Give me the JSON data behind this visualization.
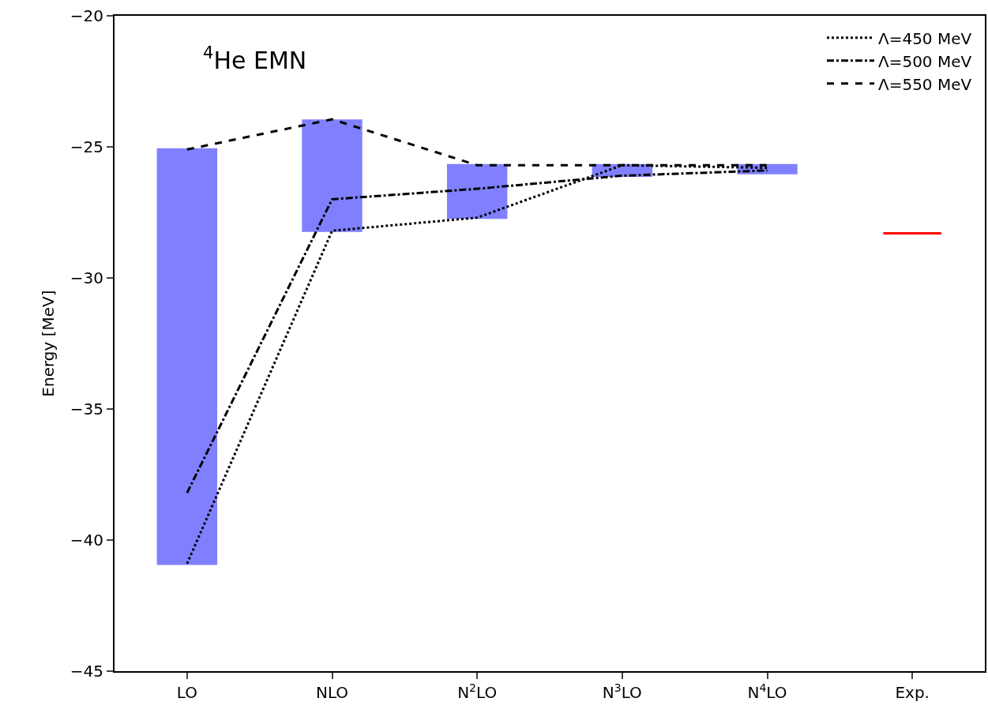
{
  "chart_data": {
    "type": "line",
    "annotations": [
      "$^{4}$He EMN"
    ],
    "ylabel": "Energy [MeV]",
    "categories": [
      "LO",
      "NLO",
      "N$^{2}$LO",
      "N$^{3}$LO",
      "N$^{4}$LO",
      "Exp."
    ],
    "ylim": [
      -45,
      -20
    ],
    "yticks": [
      -45,
      -40,
      -35,
      -30,
      -25,
      -20
    ],
    "legend": "top right",
    "series": [
      {
        "type": "bar",
        "color": "#8080ff",
        "base": [
          -40.9,
          -28.2,
          -27.7,
          -26.1,
          -26.0,
          null
        ],
        "values": [
          15.8,
          4.2,
          2.0,
          0.4,
          0.3,
          null
        ]
      },
      {
        "name": "Λ=450 MeV",
        "color": "#000000",
        "line_style": "dotted",
        "values": [
          -40.9,
          -28.2,
          -27.7,
          -25.7,
          -25.8,
          null
        ]
      },
      {
        "name": "Λ=500 MeV",
        "color": "#000000",
        "line_style": "dashdot",
        "values": [
          -38.2,
          -27.0,
          -26.6,
          -26.1,
          -25.9,
          null
        ]
      },
      {
        "name": "Λ=550 MeV",
        "color": "#000000",
        "line_style": "dashed",
        "values": [
          -25.1,
          -23.95,
          -25.7,
          -25.7,
          -25.7,
          null
        ]
      },
      {
        "type": "bar",
        "color": "#ff0000",
        "base": [
          null,
          null,
          null,
          null,
          null,
          -28.3
        ],
        "values": [
          null,
          null,
          null,
          null,
          null,
          0
        ]
      }
    ]
  }
}
